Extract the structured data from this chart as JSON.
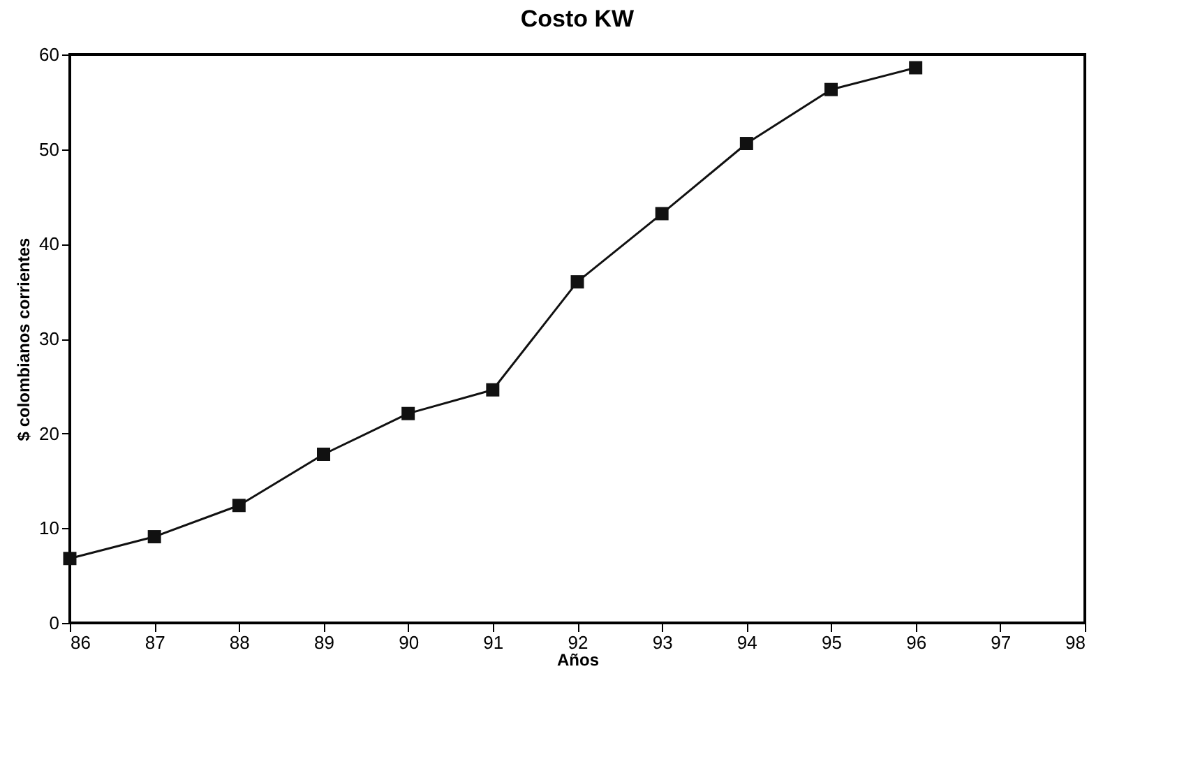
{
  "chart_data": {
    "type": "line",
    "title": "Costo KW",
    "xlabel": "Años",
    "ylabel": "$ colombianos corrientes",
    "x": [
      86,
      87,
      88,
      89,
      90,
      91,
      92,
      93,
      94,
      95,
      96
    ],
    "series": [
      {
        "color": "#111111",
        "values": [
          6.8,
          9.1,
          12.4,
          17.8,
          22.1,
          24.6,
          36.0,
          43.2,
          50.6,
          56.3,
          58.6
        ]
      }
    ],
    "xlim": [
      86,
      98
    ],
    "xticks": [
      86,
      87,
      88,
      89,
      90,
      91,
      92,
      93,
      94,
      95,
      96,
      97,
      98
    ],
    "ylim": [
      0,
      60
    ],
    "yticks": [
      0,
      10,
      20,
      30,
      40,
      50,
      60
    ],
    "marker": "square",
    "line_style": "solid"
  }
}
